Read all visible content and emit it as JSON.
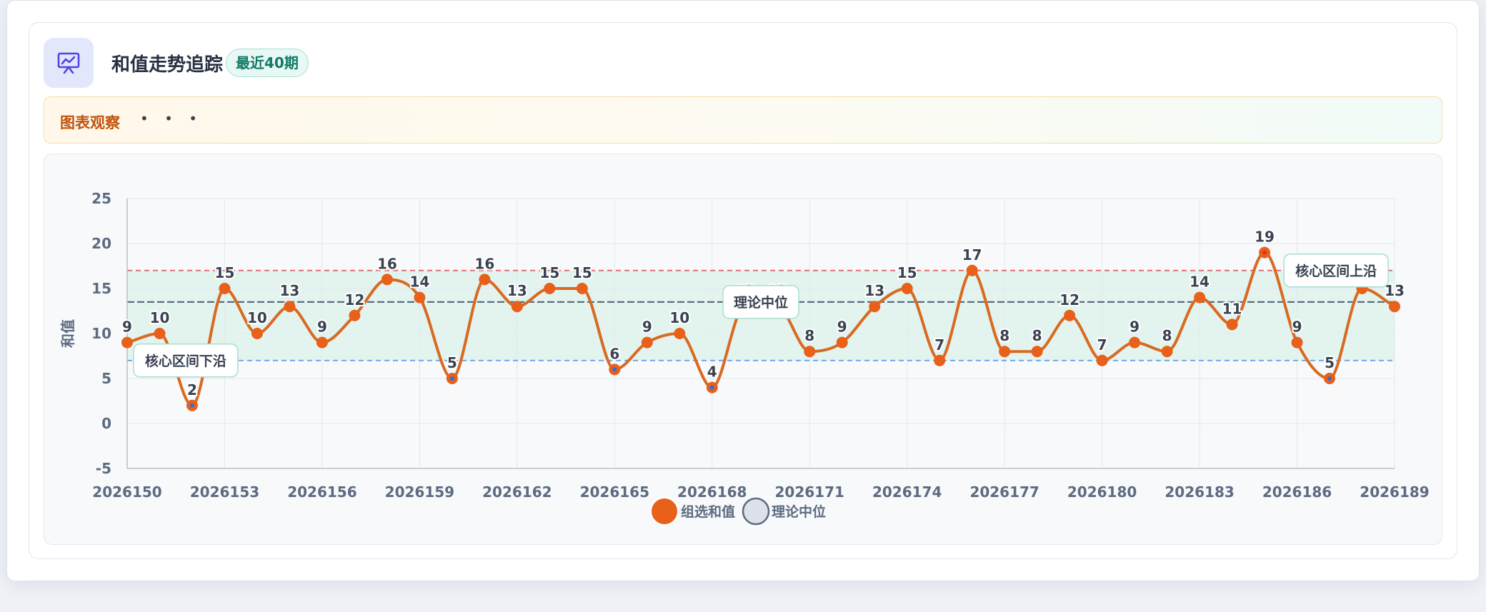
{
  "header": {
    "title": "和值走势追踪",
    "badge": "最近40期",
    "icon": "chart-presentation-icon"
  },
  "observation": {
    "label": "图表观察",
    "dots": "• • •"
  },
  "colors": {
    "line": "#d86a22",
    "point": "#e8601a",
    "point_low": "#2f6fd8",
    "point_high": "#e0331f",
    "upper_line": "#e06a6a",
    "lower_line": "#6aa3e8",
    "median_line": "#5d6b7e",
    "band": "#dff3ec"
  },
  "chart_data": {
    "type": "line",
    "x": [
      "2026150",
      "2026151",
      "2026152",
      "2026153",
      "2026154",
      "2026155",
      "2026156",
      "2026157",
      "2026158",
      "2026159",
      "2026160",
      "2026161",
      "2026162",
      "2026163",
      "2026164",
      "2026165",
      "2026166",
      "2026167",
      "2026168",
      "2026169",
      "2026170",
      "2026171",
      "2026172",
      "2026173",
      "2026174",
      "2026175",
      "2026176",
      "2026177",
      "2026178",
      "2026179",
      "2026180",
      "2026181",
      "2026182",
      "2026183",
      "2026184",
      "2026185",
      "2026186",
      "2026187",
      "2026188",
      "2026189"
    ],
    "x_ticks": [
      "2026150",
      "2026153",
      "2026156",
      "2026159",
      "2026162",
      "2026165",
      "2026168",
      "2026171",
      "2026174",
      "2026177",
      "2026180",
      "2026183",
      "2026186",
      "2026189"
    ],
    "series": [
      {
        "name": "组选和值",
        "values": [
          9,
          10,
          2,
          15,
          10,
          13,
          9,
          12,
          16,
          14,
          5,
          16,
          13,
          15,
          15,
          6,
          9,
          10,
          4,
          13,
          13,
          8,
          9,
          13,
          15,
          7,
          17,
          8,
          8,
          12,
          7,
          9,
          8,
          14,
          11,
          19,
          9,
          5,
          15,
          13
        ]
      }
    ],
    "ylabel": "和值",
    "ylim": [
      -5,
      25
    ],
    "y_ticks": [
      "25",
      "20",
      "15",
      "10",
      "5",
      "0",
      "-5"
    ],
    "reference_lines": {
      "upper": 17,
      "lower": 7,
      "median": 13.5
    },
    "annotations": {
      "lower": "核心区间下沿",
      "median": "理论中位",
      "upper": "核心区间上沿"
    },
    "legend": [
      "组选和值",
      "理论中位"
    ],
    "legend_position": "bottom-center",
    "grid": true
  }
}
